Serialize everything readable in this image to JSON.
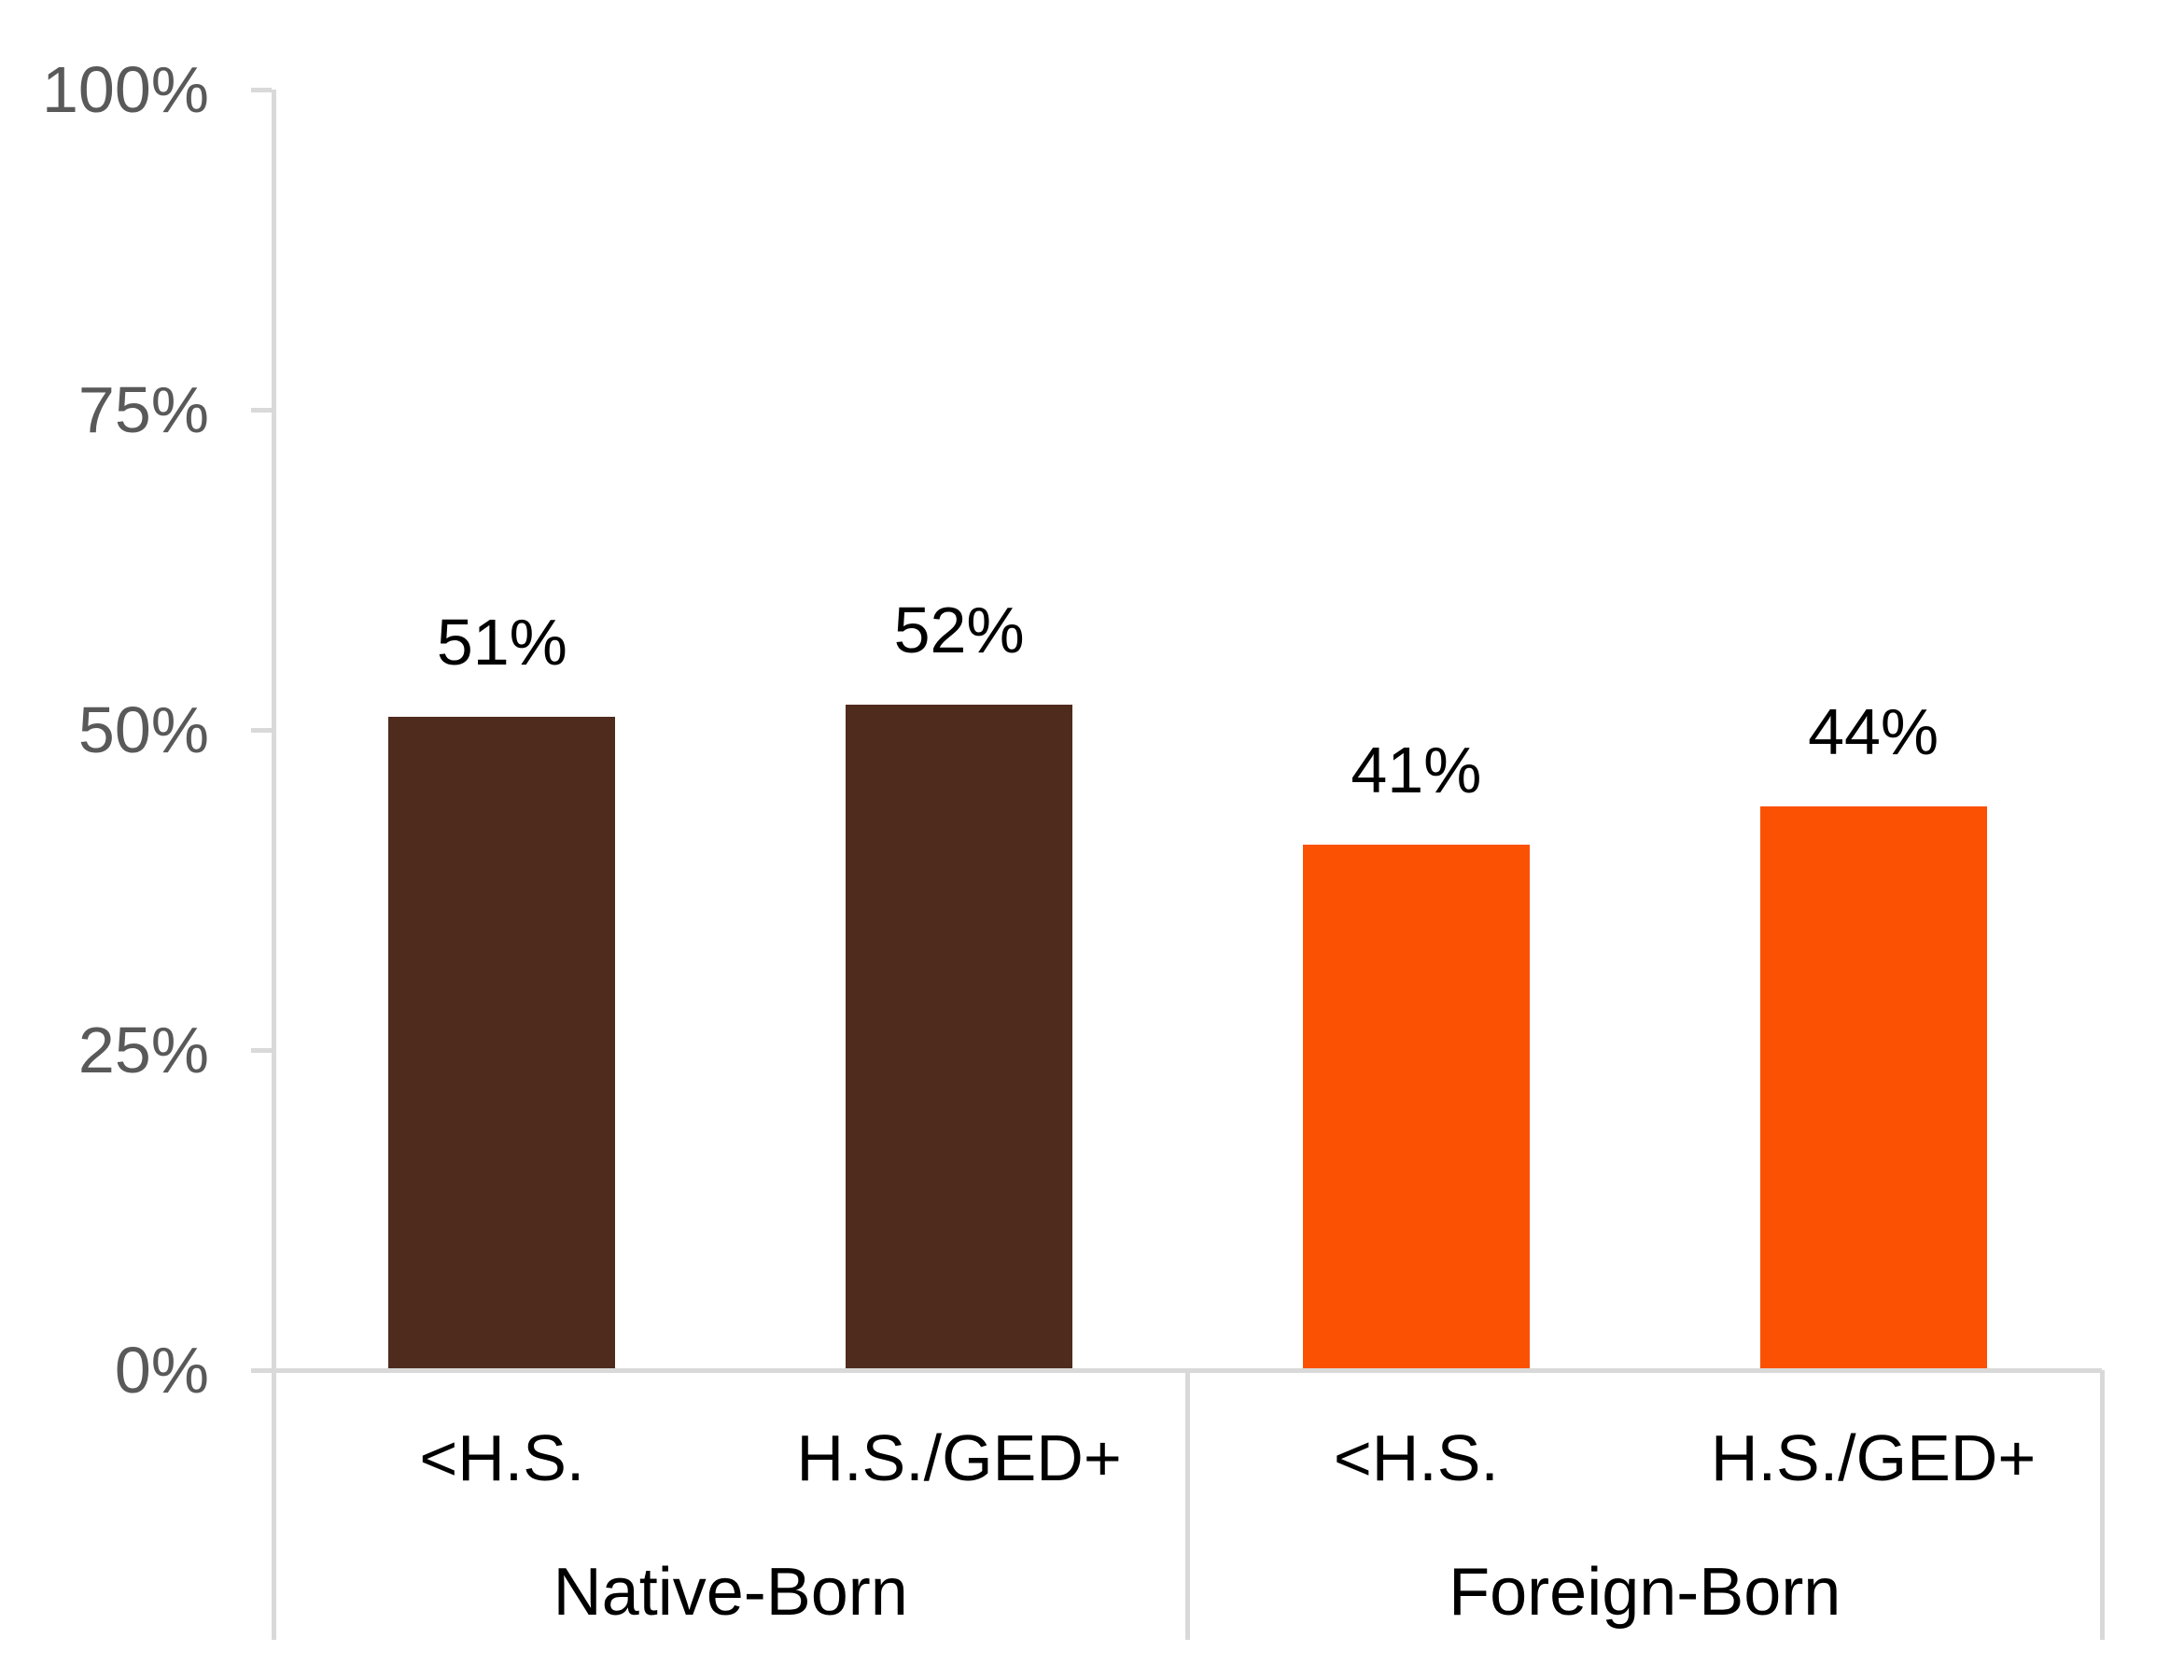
{
  "chart_data": {
    "type": "bar",
    "title": "",
    "xlabel": "",
    "ylabel": "",
    "ylim": [
      0,
      100
    ],
    "grid": false,
    "legend": "none",
    "y_axis": {
      "ticks": [
        {
          "label": "100%",
          "value": 100
        },
        {
          "label": "75%",
          "value": 75
        },
        {
          "label": "50%",
          "value": 50
        },
        {
          "label": "25%",
          "value": 25
        },
        {
          "label": "0%",
          "value": 0
        }
      ]
    },
    "groups": [
      {
        "label": "Native-Born",
        "color": "#4F2B1E",
        "bars": [
          {
            "category": "<H.S.",
            "value": 51,
            "data_label": "51%"
          },
          {
            "category": "H.S./GED+",
            "value": 52,
            "data_label": "52%"
          }
        ]
      },
      {
        "label": "Foreign-Born",
        "color": "#FB5103",
        "bars": [
          {
            "category": "<H.S.",
            "value": 41,
            "data_label": "41%"
          },
          {
            "category": "H.S./GED+",
            "value": 44,
            "data_label": "44%"
          }
        ]
      }
    ],
    "colors": {
      "native_born_bar": "#4F2B1E",
      "foreign_born_bar": "#FB5103",
      "axis_line": "#D9D9D9",
      "axis_tick_text": "#595959",
      "data_label_text": "#000000"
    }
  }
}
